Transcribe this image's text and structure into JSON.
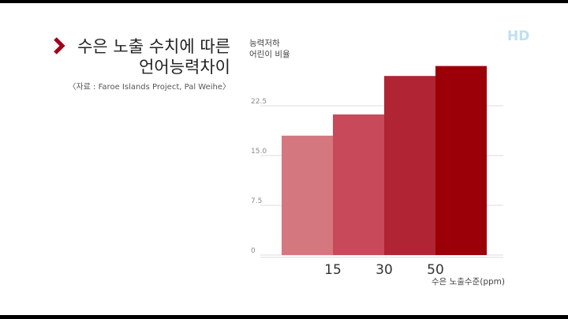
{
  "logo": "HD",
  "chart_data": {
    "type": "bar",
    "title": [
      "수은 노출 수치에 따른",
      "언어능력차이"
    ],
    "source": "〈자료 : Faroe Islands Project, Pal Weihe〉",
    "ylabel": [
      "능력저하",
      "어린이 비율"
    ],
    "xlabel": "수은 노출수준(ppm)",
    "categories": [
      null,
      null,
      null,
      null
    ],
    "values": [
      18,
      21.2,
      27,
      28.5
    ],
    "colors": [
      "#d5777f",
      "#c84a5a",
      "#b02434",
      "#9b0008"
    ],
    "xticks": [
      15,
      30,
      50
    ],
    "ylim": [
      0,
      30
    ],
    "yticks": [
      0,
      7.5,
      {
        "value": 15,
        "label": "15.0"
      },
      22.5
    ],
    "grid": true
  }
}
